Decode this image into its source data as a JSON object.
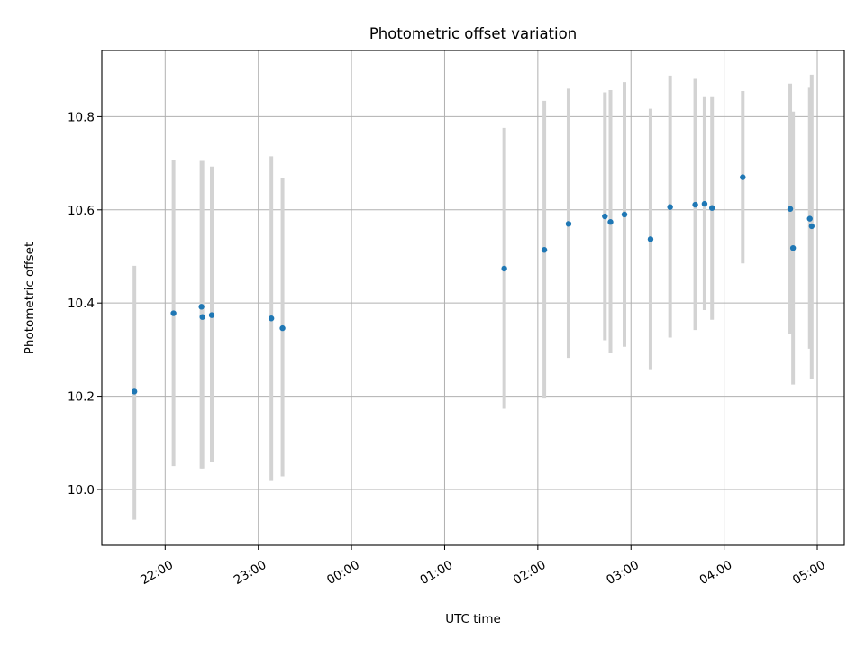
{
  "chart_data": {
    "type": "scatter",
    "title": "Photometric offset variation",
    "xlabel": "UTC time",
    "ylabel": "Photometric offset",
    "grid": true,
    "x_unit": "hours",
    "x_range": [
      -2.68,
      5.29
    ],
    "ylim": [
      9.88,
      10.942
    ],
    "x_ticks": [
      {
        "value": -2,
        "label": "22:00"
      },
      {
        "value": -1,
        "label": "23:00"
      },
      {
        "value": 0,
        "label": "00:00"
      },
      {
        "value": 1,
        "label": "01:00"
      },
      {
        "value": 2,
        "label": "02:00"
      },
      {
        "value": 3,
        "label": "03:00"
      },
      {
        "value": 4,
        "label": "04:00"
      },
      {
        "value": 5,
        "label": "05:00"
      }
    ],
    "y_ticks": [
      {
        "value": 10.0,
        "label": "10.0"
      },
      {
        "value": 10.2,
        "label": "10.2"
      },
      {
        "value": 10.4,
        "label": "10.4"
      },
      {
        "value": 10.6,
        "label": "10.6"
      },
      {
        "value": 10.8,
        "label": "10.8"
      }
    ],
    "marker_color": "#1f77b4",
    "errorbar_color": "#d3d3d3",
    "points": [
      {
        "x": -2.33,
        "y": 10.21,
        "low": 9.935,
        "high": 10.48
      },
      {
        "x": -1.91,
        "y": 10.378,
        "low": 10.05,
        "high": 10.708
      },
      {
        "x": -1.61,
        "y": 10.392,
        "low": 10.045,
        "high": 10.705
      },
      {
        "x": -1.6,
        "y": 10.37,
        "low": 10.045,
        "high": 10.705
      },
      {
        "x": -1.5,
        "y": 10.374,
        "low": 10.058,
        "high": 10.693
      },
      {
        "x": -0.86,
        "y": 10.367,
        "low": 10.018,
        "high": 10.715
      },
      {
        "x": -0.74,
        "y": 10.346,
        "low": 10.028,
        "high": 10.668
      },
      {
        "x": 1.64,
        "y": 10.474,
        "low": 10.173,
        "high": 10.776
      },
      {
        "x": 2.07,
        "y": 10.514,
        "low": 10.195,
        "high": 10.834
      },
      {
        "x": 2.33,
        "y": 10.57,
        "low": 10.282,
        "high": 10.86
      },
      {
        "x": 2.72,
        "y": 10.586,
        "low": 10.32,
        "high": 10.852
      },
      {
        "x": 2.78,
        "y": 10.574,
        "low": 10.292,
        "high": 10.857
      },
      {
        "x": 2.93,
        "y": 10.59,
        "low": 10.306,
        "high": 10.874
      },
      {
        "x": 3.21,
        "y": 10.537,
        "low": 10.258,
        "high": 10.817
      },
      {
        "x": 3.42,
        "y": 10.606,
        "low": 10.326,
        "high": 10.888
      },
      {
        "x": 3.69,
        "y": 10.611,
        "low": 10.342,
        "high": 10.881
      },
      {
        "x": 3.79,
        "y": 10.613,
        "low": 10.385,
        "high": 10.842
      },
      {
        "x": 3.87,
        "y": 10.604,
        "low": 10.364,
        "high": 10.842
      },
      {
        "x": 4.2,
        "y": 10.67,
        "low": 10.485,
        "high": 10.855
      },
      {
        "x": 4.71,
        "y": 10.602,
        "low": 10.333,
        "high": 10.871
      },
      {
        "x": 4.74,
        "y": 10.518,
        "low": 10.225,
        "high": 10.811
      },
      {
        "x": 4.92,
        "y": 10.581,
        "low": 10.302,
        "high": 10.862
      },
      {
        "x": 4.94,
        "y": 10.565,
        "low": 10.236,
        "high": 10.89
      }
    ]
  }
}
